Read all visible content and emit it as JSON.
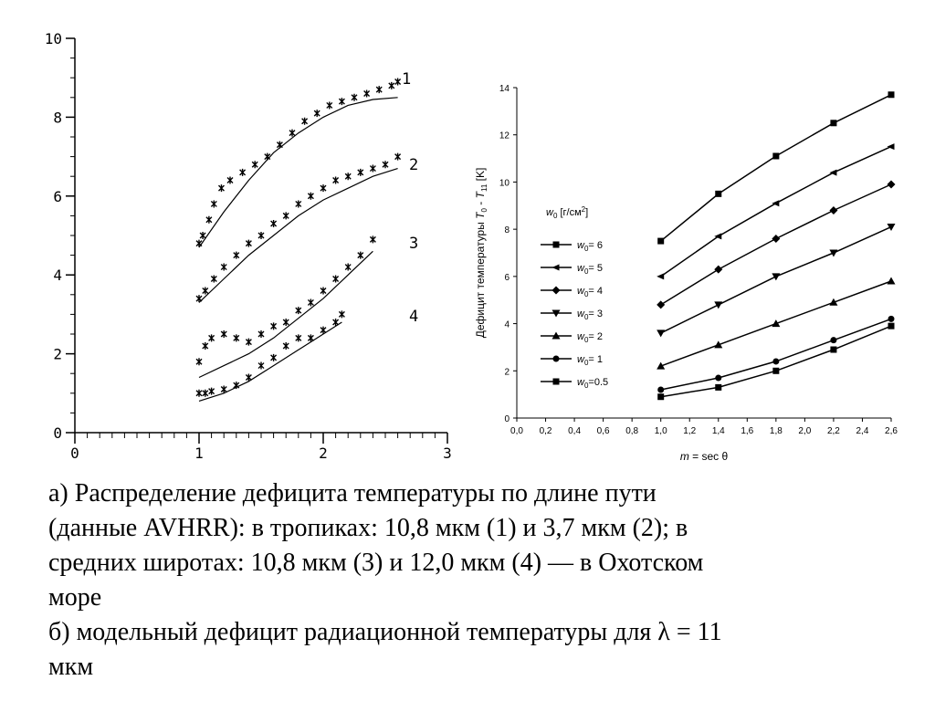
{
  "chart_data": [
    {
      "type": "scatter",
      "xlim": [
        0,
        3
      ],
      "ylim": [
        0,
        10
      ],
      "x_ticks": [
        "0",
        "1",
        "2",
        "3"
      ],
      "y_ticks": [
        "0",
        "2",
        "4",
        "6",
        "8",
        "10"
      ],
      "series": [
        {
          "name": "1",
          "points": [
            [
              1.0,
              4.8
            ],
            [
              1.03,
              5.0
            ],
            [
              1.08,
              5.4
            ],
            [
              1.12,
              5.8
            ],
            [
              1.18,
              6.2
            ],
            [
              1.25,
              6.4
            ],
            [
              1.35,
              6.6
            ],
            [
              1.45,
              6.8
            ],
            [
              1.55,
              7.0
            ],
            [
              1.65,
              7.3
            ],
            [
              1.75,
              7.6
            ],
            [
              1.85,
              7.9
            ],
            [
              1.95,
              8.1
            ],
            [
              2.05,
              8.3
            ],
            [
              2.15,
              8.4
            ],
            [
              2.25,
              8.5
            ],
            [
              2.35,
              8.6
            ],
            [
              2.45,
              8.7
            ],
            [
              2.55,
              8.8
            ],
            [
              2.6,
              8.9
            ]
          ],
          "fit": [
            [
              1.0,
              4.7
            ],
            [
              1.2,
              5.6
            ],
            [
              1.4,
              6.4
            ],
            [
              1.6,
              7.1
            ],
            [
              1.8,
              7.6
            ],
            [
              2.0,
              8.0
            ],
            [
              2.2,
              8.3
            ],
            [
              2.4,
              8.45
            ],
            [
              2.6,
              8.5
            ]
          ]
        },
        {
          "name": "2",
          "points": [
            [
              1.0,
              3.4
            ],
            [
              1.05,
              3.6
            ],
            [
              1.12,
              3.9
            ],
            [
              1.2,
              4.2
            ],
            [
              1.3,
              4.5
            ],
            [
              1.4,
              4.8
            ],
            [
              1.5,
              5.0
            ],
            [
              1.6,
              5.3
            ],
            [
              1.7,
              5.5
            ],
            [
              1.8,
              5.8
            ],
            [
              1.9,
              6.0
            ],
            [
              2.0,
              6.2
            ],
            [
              2.1,
              6.4
            ],
            [
              2.2,
              6.5
            ],
            [
              2.3,
              6.6
            ],
            [
              2.4,
              6.7
            ],
            [
              2.5,
              6.8
            ],
            [
              2.6,
              7.0
            ]
          ],
          "fit": [
            [
              1.0,
              3.3
            ],
            [
              1.2,
              3.9
            ],
            [
              1.4,
              4.5
            ],
            [
              1.6,
              5.0
            ],
            [
              1.8,
              5.5
            ],
            [
              2.0,
              5.9
            ],
            [
              2.2,
              6.2
            ],
            [
              2.4,
              6.5
            ],
            [
              2.6,
              6.7
            ]
          ]
        },
        {
          "name": "3",
          "points": [
            [
              1.0,
              1.8
            ],
            [
              1.05,
              2.2
            ],
            [
              1.1,
              2.4
            ],
            [
              1.2,
              2.5
            ],
            [
              1.3,
              2.4
            ],
            [
              1.4,
              2.3
            ],
            [
              1.5,
              2.5
            ],
            [
              1.6,
              2.7
            ],
            [
              1.7,
              2.8
            ],
            [
              1.8,
              3.1
            ],
            [
              1.9,
              3.3
            ],
            [
              2.0,
              3.6
            ],
            [
              2.1,
              3.9
            ],
            [
              2.2,
              4.2
            ],
            [
              2.3,
              4.5
            ],
            [
              2.4,
              4.9
            ]
          ],
          "fit": [
            [
              1.0,
              1.4
            ],
            [
              1.2,
              1.7
            ],
            [
              1.4,
              2.0
            ],
            [
              1.6,
              2.4
            ],
            [
              1.8,
              2.9
            ],
            [
              2.0,
              3.4
            ],
            [
              2.2,
              4.0
            ],
            [
              2.4,
              4.6
            ]
          ]
        },
        {
          "name": "4",
          "points": [
            [
              1.0,
              1.0
            ],
            [
              1.05,
              1.0
            ],
            [
              1.1,
              1.05
            ],
            [
              1.2,
              1.1
            ],
            [
              1.3,
              1.2
            ],
            [
              1.4,
              1.4
            ],
            [
              1.5,
              1.7
            ],
            [
              1.6,
              1.9
            ],
            [
              1.7,
              2.2
            ],
            [
              1.8,
              2.4
            ],
            [
              1.9,
              2.4
            ],
            [
              2.0,
              2.6
            ],
            [
              2.1,
              2.8
            ],
            [
              2.15,
              3.0
            ]
          ],
          "fit": [
            [
              1.0,
              0.8
            ],
            [
              1.2,
              1.0
            ],
            [
              1.4,
              1.3
            ],
            [
              1.6,
              1.7
            ],
            [
              1.8,
              2.1
            ],
            [
              2.0,
              2.5
            ],
            [
              2.15,
              2.8
            ]
          ]
        }
      ]
    },
    {
      "type": "line",
      "xlabel_parts": {
        "var": "m",
        "rest": " = sec θ"
      },
      "ylabel_parts": {
        "pre": "Дефицит температуры ",
        "t0": "T",
        "s0": "0",
        "mid": " - ",
        "t11": "T",
        "s11": "11",
        "post": " [K]"
      },
      "xlim": [
        0,
        2.6
      ],
      "ylim": [
        0,
        14
      ],
      "x_ticks": [
        "0,0",
        "0,2",
        "0,4",
        "0,6",
        "0,8",
        "1,0",
        "1,2",
        "1,4",
        "1,6",
        "1,8",
        "2,0",
        "2,2",
        "2,4",
        "2,6"
      ],
      "y_ticks": [
        "0",
        "2",
        "4",
        "6",
        "8",
        "10",
        "12",
        "14"
      ],
      "x": [
        1.0,
        1.4,
        1.8,
        2.2,
        2.6
      ],
      "legend_title": {
        "var": "w",
        "sub": "0",
        "rest": " [г/см",
        "sup": "2",
        "close": "]"
      },
      "legend_position": "left",
      "series": [
        {
          "name": "6",
          "marker": "square",
          "values": [
            7.5,
            9.5,
            11.1,
            12.5,
            13.7
          ]
        },
        {
          "name": "5",
          "marker": "triangle-left",
          "values": [
            6.0,
            7.7,
            9.1,
            10.4,
            11.5
          ]
        },
        {
          "name": "4",
          "marker": "diamond",
          "values": [
            4.8,
            6.3,
            7.6,
            8.8,
            9.9
          ]
        },
        {
          "name": "3",
          "marker": "triangle-down",
          "values": [
            3.6,
            4.8,
            6.0,
            7.0,
            8.1
          ]
        },
        {
          "name": "2",
          "marker": "triangle-up",
          "values": [
            2.2,
            3.1,
            4.0,
            4.9,
            5.8
          ]
        },
        {
          "name": "1",
          "marker": "circle",
          "values": [
            1.2,
            1.7,
            2.4,
            3.3,
            4.2
          ]
        },
        {
          "name": "0.5",
          "marker": "square",
          "values": [
            0.9,
            1.3,
            2.0,
            2.9,
            3.9
          ]
        }
      ]
    }
  ],
  "caption": {
    "lines": [
      "а) Распределение дефицита температуры по длине пути",
      "(данные AVHRR): в тропиках: 10,8 мкм (1) и 3,7 мкм (2); в",
      "средних широтах: 10,8 мкм (3) и 12,0 мкм (4) — в Охотском",
      "море",
      "б) модельный дефицит радиационной температуры для λ = 11",
      "мкм"
    ]
  }
}
